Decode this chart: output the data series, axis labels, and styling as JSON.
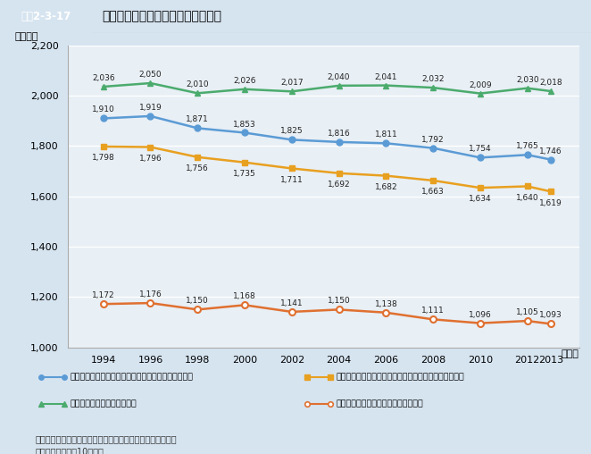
{
  "title_box": "図袅2-3-17",
  "title_main": "労働者１人平均年間労働時間の推移",
  "ylabel": "（時間）",
  "xlabel_suffix": "（年）",
  "years": [
    1994,
    1996,
    1998,
    2000,
    2002,
    2004,
    2006,
    2008,
    2010,
    2012,
    2013
  ],
  "series_total_all_values": [
    1910,
    1919,
    1871,
    1853,
    1825,
    1816,
    1811,
    1792,
    1754,
    1765,
    1746
  ],
  "series_total_all_color": "#5b9bd5",
  "series_total_all_label": "総実労働時間（一般労働者・パートタイム労働者計）",
  "series_total_general_values": [
    2036,
    2050,
    2010,
    2026,
    2017,
    2040,
    2041,
    2032,
    2009,
    2030,
    2018
  ],
  "series_total_general_color": "#4bab6d",
  "series_total_general_label": "総実労働時間（一般労働者）",
  "series_scheduled_all_values": [
    1798,
    1796,
    1756,
    1735,
    1711,
    1692,
    1682,
    1663,
    1634,
    1640,
    1619
  ],
  "series_scheduled_all_color": "#e8a020",
  "series_scheduled_all_label": "所定内労働時間（一般労働者・パートタイム労働者計）",
  "series_parttime_values": [
    1172,
    1176,
    1150,
    1168,
    1141,
    1150,
    1138,
    1111,
    1096,
    1105,
    1093
  ],
  "series_parttime_color": "#e07030",
  "series_parttime_label": "総実労働時間（パートタイム労働者）",
  "ylim": [
    1000,
    2200
  ],
  "yticks": [
    1000,
    1200,
    1400,
    1600,
    1800,
    2000,
    2200
  ],
  "bg_color": "#d6e4f0",
  "plot_bg_color": "#e8eff5",
  "source_line1": "資料：厘生労働省大臣官房統計情報部「毎月勤労統計調査」",
  "source_line2": "（注）　事業規模10人以上"
}
